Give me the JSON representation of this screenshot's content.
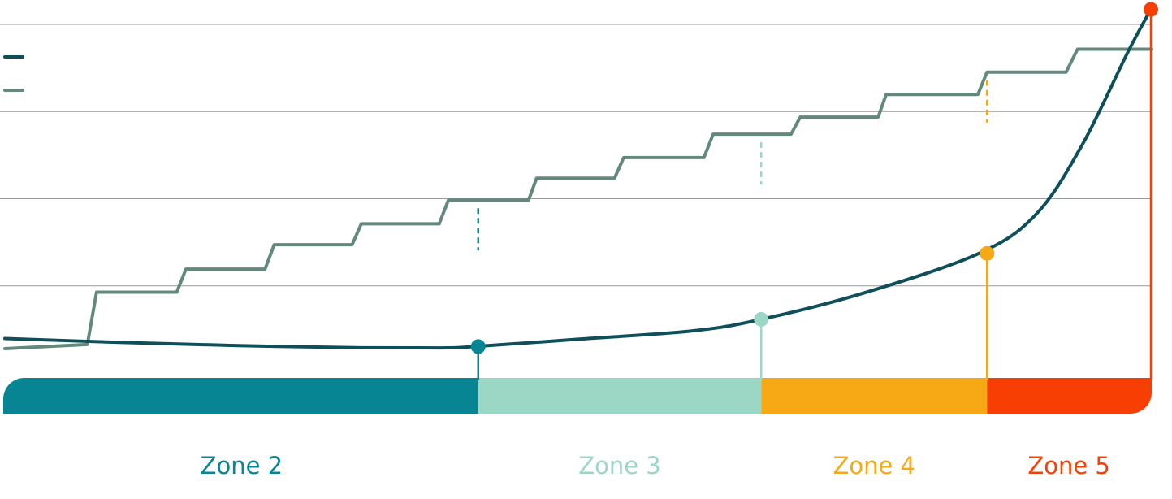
{
  "chart_data": {
    "type": "line",
    "title": "",
    "xlabel": "",
    "ylabel": "",
    "xlim": [
      0,
      100
    ],
    "ylim": [
      0,
      100
    ],
    "grid": true,
    "grid_y": [
      25,
      50,
      75,
      100
    ],
    "colors": {
      "grid": "#9a9a9a",
      "curve": "#0e4f5a",
      "steps": "#63897b",
      "zone2": "#078592",
      "zone3": "#9cd7c6",
      "zone4": "#f6a815",
      "zone5": "#f73f03"
    },
    "legend": {
      "placement": "top-left",
      "entries": [
        {
          "label": "",
          "color": "#0e4f5a"
        },
        {
          "label": "",
          "color": "#63897b"
        }
      ]
    },
    "series": [
      {
        "name": "",
        "style": "smooth",
        "points": [
          [
            0,
            9.9
          ],
          [
            10,
            8.8
          ],
          [
            20,
            7.9
          ],
          [
            30,
            7.3
          ],
          [
            38,
            7.2
          ],
          [
            41,
            7.6
          ],
          [
            50,
            9.7
          ],
          [
            60,
            12.1
          ],
          [
            66,
            15.4
          ],
          [
            75,
            23.0
          ],
          [
            85,
            34.3
          ],
          [
            90,
            45.6
          ],
          [
            94,
            65.4
          ],
          [
            98,
            92.1
          ],
          [
            100,
            104.3
          ]
        ]
      },
      {
        "name": "",
        "style": "steps",
        "points": [
          [
            0,
            7.0
          ],
          [
            7.2,
            8.2
          ],
          [
            8.0,
            23.2
          ],
          [
            15.0,
            23.2
          ],
          [
            15.8,
            29.8
          ],
          [
            22.7,
            29.8
          ],
          [
            23.5,
            36.8
          ],
          [
            30.3,
            36.8
          ],
          [
            31.1,
            42.8
          ],
          [
            37.9,
            42.8
          ],
          [
            38.7,
            49.6
          ],
          [
            45.7,
            49.6
          ],
          [
            46.4,
            55.9
          ],
          [
            53.2,
            55.9
          ],
          [
            54.0,
            61.8
          ],
          [
            61.0,
            61.8
          ],
          [
            61.8,
            68.5
          ],
          [
            68.6,
            68.5
          ],
          [
            69.4,
            73.4
          ],
          [
            76.2,
            73.4
          ],
          [
            76.9,
            79.9
          ],
          [
            84.9,
            79.9
          ],
          [
            85.7,
            86.3
          ],
          [
            92.6,
            86.3
          ],
          [
            93.6,
            92.9
          ],
          [
            100,
            92.9
          ]
        ]
      }
    ],
    "thresholds": [
      {
        "zone": "Zone 2",
        "x": 41.3,
        "y": 7.6,
        "step_level": 49.6,
        "color": "#078592"
      },
      {
        "zone": "Zone 3",
        "x": 66.0,
        "y": 15.4,
        "step_level": 68.5,
        "color": "#9cd7c6"
      },
      {
        "zone": "Zone 4",
        "x": 85.7,
        "y": 34.3,
        "step_level": 86.3,
        "color": "#f6a815"
      },
      {
        "zone": "Zone 5",
        "x": 100,
        "y": 104.3,
        "step_level": 104.3,
        "color": "#f73f03"
      }
    ],
    "zones": [
      {
        "label": "Zone 2",
        "from": 0,
        "to": 41.3,
        "color": "#078592"
      },
      {
        "label": "Zone 3",
        "from": 41.3,
        "to": 66.0,
        "color": "#9cd7c6"
      },
      {
        "label": "Zone 4",
        "from": 66.0,
        "to": 85.7,
        "color": "#f6a815"
      },
      {
        "label": "Zone 5",
        "from": 85.7,
        "to": 100,
        "color": "#f73f03"
      }
    ]
  }
}
